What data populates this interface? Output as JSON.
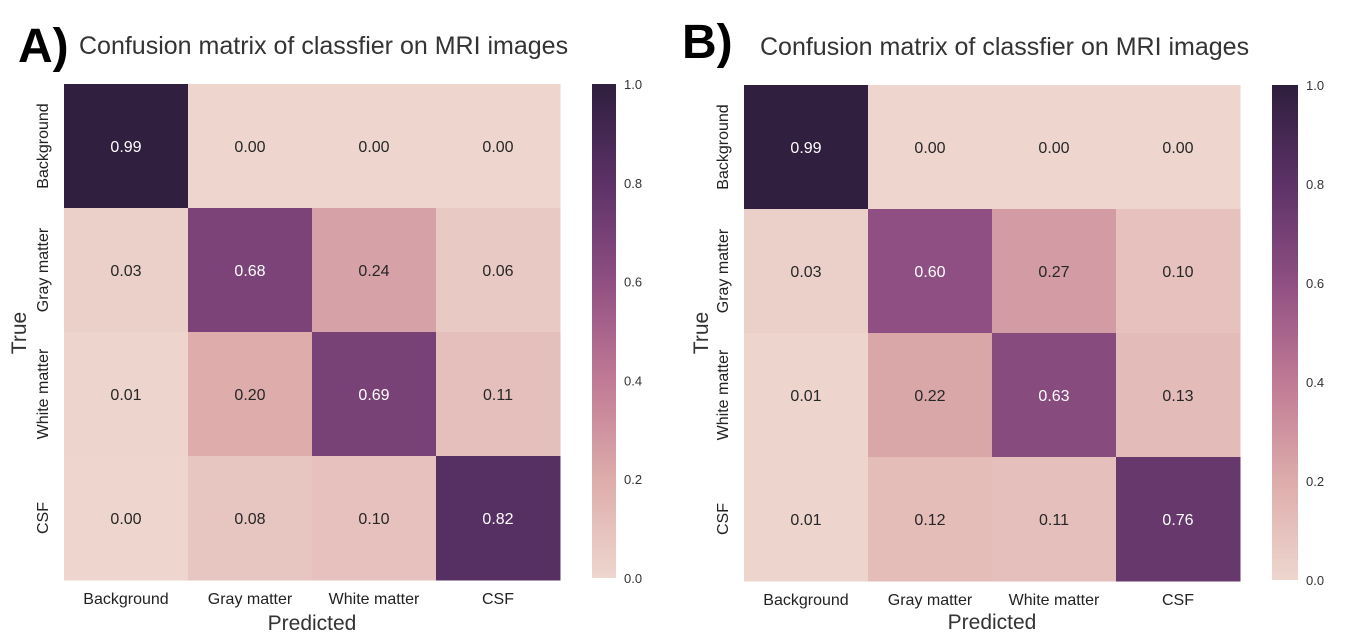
{
  "chart_data": [
    {
      "type": "heatmap",
      "panel_label": "A)",
      "title": "Confusion matrix of classfier on MRI images",
      "xlabel": "Predicted",
      "ylabel": "True",
      "x_categories": [
        "Background",
        "Gray matter",
        "White matter",
        "CSF"
      ],
      "y_categories": [
        "Background",
        "Gray matter",
        "White matter",
        "CSF"
      ],
      "values": [
        [
          0.99,
          0.0,
          0.0,
          0.0
        ],
        [
          0.03,
          0.68,
          0.24,
          0.06
        ],
        [
          0.01,
          0.2,
          0.69,
          0.11
        ],
        [
          0.0,
          0.08,
          0.1,
          0.82
        ]
      ],
      "value_labels": [
        [
          "0.99",
          "0.00",
          "0.00",
          "0.00"
        ],
        [
          "0.03",
          "0.68",
          "0.24",
          "0.06"
        ],
        [
          "0.01",
          "0.20",
          "0.69",
          "0.11"
        ],
        [
          "0.00",
          "0.08",
          "0.10",
          "0.82"
        ]
      ],
      "colorbar": {
        "range": [
          0.0,
          1.0
        ],
        "ticks": [
          "0.0",
          "0.2",
          "0.4",
          "0.6",
          "0.8",
          "1.0"
        ]
      }
    },
    {
      "type": "heatmap",
      "panel_label": "B)",
      "title": "Confusion matrix of classfier on MRI images",
      "xlabel": "Predicted",
      "ylabel": "True",
      "x_categories": [
        "Background",
        "Gray matter",
        "White matter",
        "CSF"
      ],
      "y_categories": [
        "Background",
        "Gray matter",
        "White matter",
        "CSF"
      ],
      "values": [
        [
          0.99,
          0.0,
          0.0,
          0.0
        ],
        [
          0.03,
          0.6,
          0.27,
          0.1
        ],
        [
          0.01,
          0.22,
          0.63,
          0.13
        ],
        [
          0.01,
          0.12,
          0.11,
          0.76
        ]
      ],
      "value_labels": [
        [
          "0.99",
          "0.00",
          "0.00",
          "0.00"
        ],
        [
          "0.03",
          "0.60",
          "0.27",
          "0.10"
        ],
        [
          "0.01",
          "0.22",
          "0.63",
          "0.13"
        ],
        [
          "0.01",
          "0.12",
          "0.11",
          "0.76"
        ]
      ],
      "colorbar": {
        "range": [
          0.0,
          1.0
        ],
        "ticks": [
          "0.0",
          "0.2",
          "0.4",
          "0.6",
          "0.8",
          "1.0"
        ]
      }
    }
  ],
  "colormap": {
    "stops": [
      "#eed6cf",
      "#ddacab",
      "#c07a95",
      "#8f4f82",
      "#5c3267",
      "#2e1e3d"
    ]
  }
}
